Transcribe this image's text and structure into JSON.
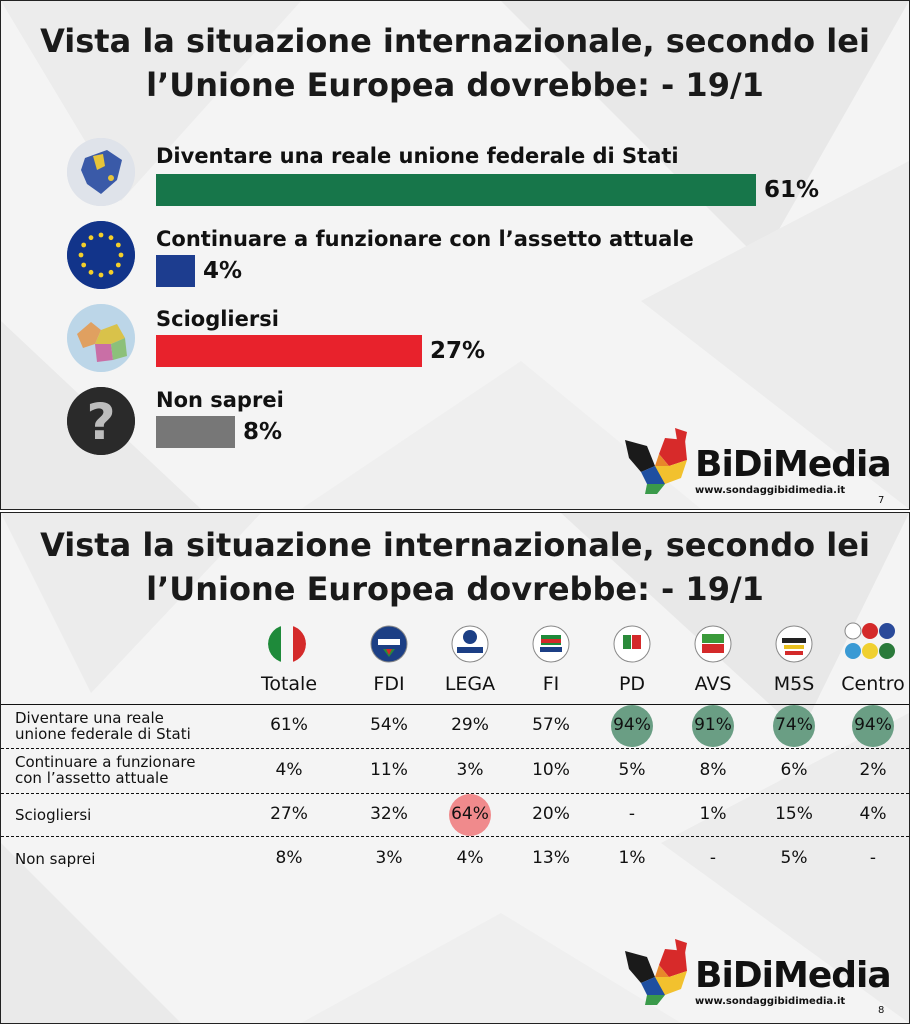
{
  "chart_data": [
    {
      "type": "bar",
      "title": "Vista la situazione internazionale, secondo lei l’Unione Europea dovrebbe: - 19/1",
      "title_lines": [
        "Vista la situazione internazionale, secondo lei",
        "l’Unione Europea dovrebbe: - 19/1"
      ],
      "orientation": "horizontal",
      "categories": [
        "Diventare una reale unione federale di Stati",
        "Continuare a funzionare con l’assetto attuale",
        "Sciogliersi",
        "Non saprei"
      ],
      "values": [
        61,
        4,
        27,
        8
      ],
      "value_labels": [
        "61%",
        "4%",
        "27%",
        "8%"
      ],
      "colors": [
        "#17764a",
        "#1d3d8f",
        "#e8222c",
        "#777777"
      ],
      "icons": [
        "eu-map-icon",
        "eu-flag-icon",
        "europe-political-map-icon",
        "question-mark-icon"
      ],
      "page_number": "7"
    },
    {
      "type": "table",
      "title": "Vista la situazione internazionale, secondo lei l’Unione Europea dovrebbe: - 19/1",
      "title_lines": [
        "Vista la situazione internazionale, secondo lei",
        "l’Unione Europea dovrebbe: - 19/1"
      ],
      "columns": [
        "Totale",
        "FDI",
        "LEGA",
        "FI",
        "PD",
        "AVS",
        "M5S",
        "Centro"
      ],
      "column_icons": [
        "italy-flag-icon",
        "fdi-logo-icon",
        "lega-logo-icon",
        "fi-logo-icon",
        "pd-logo-icon",
        "avs-logo-icon",
        "m5s-logo-icon",
        "centro-logos-icon"
      ],
      "rows": [
        {
          "label_lines": [
            "Diventare una reale",
            "unione federale di Stati"
          ],
          "values": [
            "61%",
            "54%",
            "29%",
            "57%",
            "94%",
            "91%",
            "74%",
            "94%"
          ],
          "highlight": [
            null,
            null,
            null,
            null,
            "green",
            "green",
            "green",
            "green"
          ]
        },
        {
          "label_lines": [
            "Continuare a funzionare",
            "con l’assetto attuale"
          ],
          "values": [
            "4%",
            "11%",
            "3%",
            "10%",
            "5%",
            "8%",
            "6%",
            "2%"
          ],
          "highlight": [
            null,
            null,
            null,
            null,
            null,
            null,
            null,
            null
          ]
        },
        {
          "label_lines": [
            "Sciogliersi"
          ],
          "values": [
            "27%",
            "32%",
            "64%",
            "20%",
            "-",
            "1%",
            "15%",
            "4%"
          ],
          "highlight": [
            null,
            null,
            "red",
            null,
            null,
            null,
            null,
            null
          ]
        },
        {
          "label_lines": [
            "Non saprei"
          ],
          "values": [
            "8%",
            "3%",
            "4%",
            "13%",
            "1%",
            "-",
            "5%",
            "-"
          ],
          "highlight": [
            null,
            null,
            null,
            null,
            null,
            null,
            null,
            null
          ]
        }
      ],
      "highlight_colors": {
        "green": "#6a9e84",
        "red": "#f08a8c"
      },
      "page_number": "8"
    }
  ],
  "logo": {
    "brand": "BiDiMedia",
    "url": "www.sondaggibidimedia.it"
  }
}
